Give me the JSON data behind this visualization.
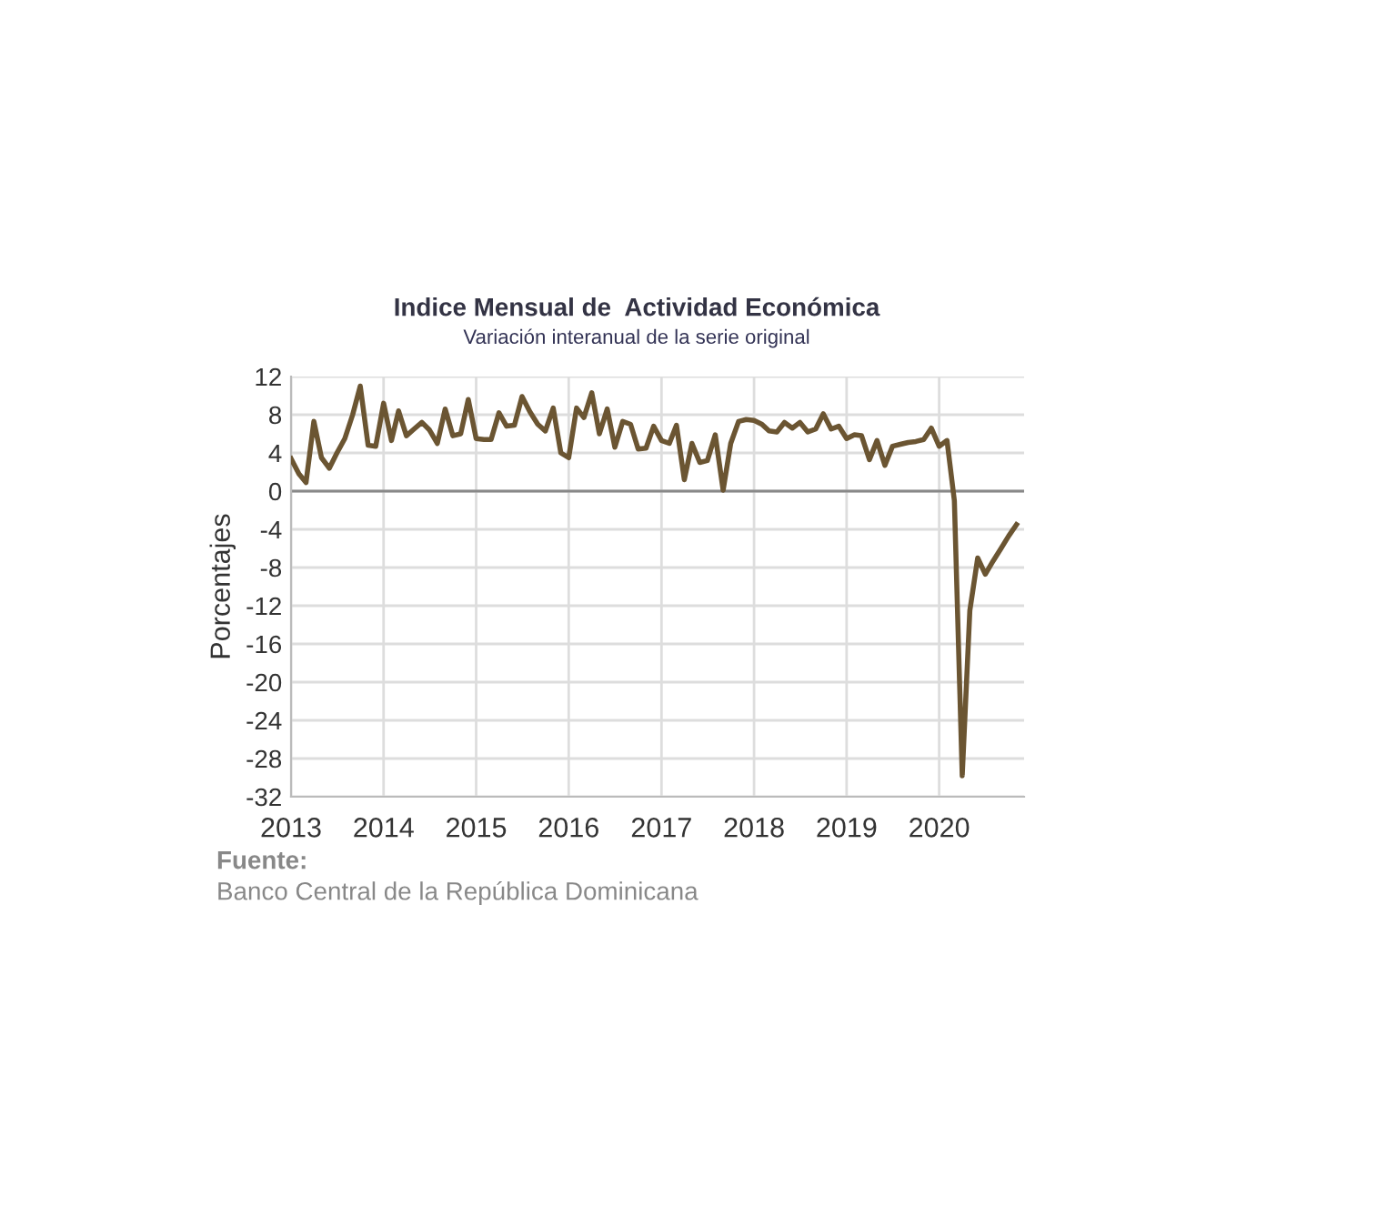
{
  "chart_data": {
    "type": "line",
    "title": "Indice Mensual de  Actividad Económica",
    "subtitle": "Variación interanual de la serie original",
    "ylabel": "Porcentajes",
    "x": [
      "2013-01",
      "2013-02",
      "2013-03",
      "2013-04",
      "2013-05",
      "2013-06",
      "2013-07",
      "2013-08",
      "2013-09",
      "2013-10",
      "2013-11",
      "2013-12",
      "2014-01",
      "2014-02",
      "2014-03",
      "2014-04",
      "2014-05",
      "2014-06",
      "2014-07",
      "2014-08",
      "2014-09",
      "2014-10",
      "2014-11",
      "2014-12",
      "2015-01",
      "2015-02",
      "2015-03",
      "2015-04",
      "2015-05",
      "2015-06",
      "2015-07",
      "2015-08",
      "2015-09",
      "2015-10",
      "2015-11",
      "2015-12",
      "2016-01",
      "2016-02",
      "2016-03",
      "2016-04",
      "2016-05",
      "2016-06",
      "2016-07",
      "2016-08",
      "2016-09",
      "2016-10",
      "2016-11",
      "2016-12",
      "2017-01",
      "2017-02",
      "2017-03",
      "2017-04",
      "2017-05",
      "2017-06",
      "2017-07",
      "2017-08",
      "2017-09",
      "2017-10",
      "2017-11",
      "2017-12",
      "2018-01",
      "2018-02",
      "2018-03",
      "2018-04",
      "2018-05",
      "2018-06",
      "2018-07",
      "2018-08",
      "2018-09",
      "2018-10",
      "2018-11",
      "2018-12",
      "2019-01",
      "2019-02",
      "2019-03",
      "2019-04",
      "2019-05",
      "2019-06",
      "2019-07",
      "2019-08",
      "2019-09",
      "2019-10",
      "2019-11",
      "2019-12",
      "2020-01",
      "2020-02",
      "2020-03",
      "2020-04",
      "2020-05",
      "2020-06",
      "2020-07",
      "2020-08",
      "2020-09",
      "2020-10",
      "2020-11"
    ],
    "series": [
      {
        "color": "#6b5532",
        "values": [
          3.4,
          1.8,
          0.9,
          7.3,
          3.5,
          2.4,
          4.0,
          5.5,
          8.0,
          11.0,
          4.8,
          4.7,
          9.2,
          5.3,
          8.4,
          5.8,
          6.5,
          7.2,
          6.4,
          5.0,
          8.6,
          5.8,
          6.0,
          9.6,
          5.5,
          5.4,
          5.4,
          8.2,
          6.8,
          6.9,
          9.9,
          8.3,
          7.0,
          6.3,
          8.7,
          4.0,
          3.5,
          8.7,
          7.7,
          10.3,
          6.0,
          8.6,
          4.6,
          7.3,
          7.0,
          4.4,
          4.5,
          6.8,
          5.3,
          5.0,
          6.9,
          1.2,
          5.0,
          3.0,
          3.2,
          5.9,
          0.1,
          5.0,
          7.3,
          7.5,
          7.4,
          7.0,
          6.3,
          6.2,
          7.2,
          6.6,
          7.2,
          6.2,
          6.5,
          8.1,
          6.5,
          6.8,
          5.5,
          5.9,
          5.8,
          3.3,
          5.3,
          2.7,
          4.7,
          4.9,
          5.1,
          5.2,
          5.4,
          6.6,
          4.7,
          5.3,
          -1.0,
          -29.8,
          -12.5,
          -7.0,
          -8.7,
          -7.3,
          -6.0,
          -4.7,
          -3.5
        ]
      }
    ],
    "xlim": [
      "2013-01",
      "2020-12"
    ],
    "xticks": [
      {
        "value": "2013-01",
        "label": "2013"
      },
      {
        "value": "2014-01",
        "label": "2014"
      },
      {
        "value": "2015-01",
        "label": "2015"
      },
      {
        "value": "2016-01",
        "label": "2016"
      },
      {
        "value": "2017-01",
        "label": "2017"
      },
      {
        "value": "2018-01",
        "label": "2018"
      },
      {
        "value": "2019-01",
        "label": "2019"
      },
      {
        "value": "2020-01",
        "label": "2020"
      }
    ],
    "ylim": [
      -32,
      12
    ],
    "yticks": [
      -32,
      -28,
      -24,
      -20,
      -16,
      -12,
      -8,
      -4,
      0,
      4,
      8,
      12
    ],
    "ref_lines": [
      {
        "axis": "y",
        "value": 0,
        "color": "#888888"
      }
    ],
    "grid": true,
    "legend": false,
    "marker": "none",
    "line_style": "solid",
    "annotations": [
      "Fuente:",
      "Banco Central de la República Dominicana"
    ]
  }
}
